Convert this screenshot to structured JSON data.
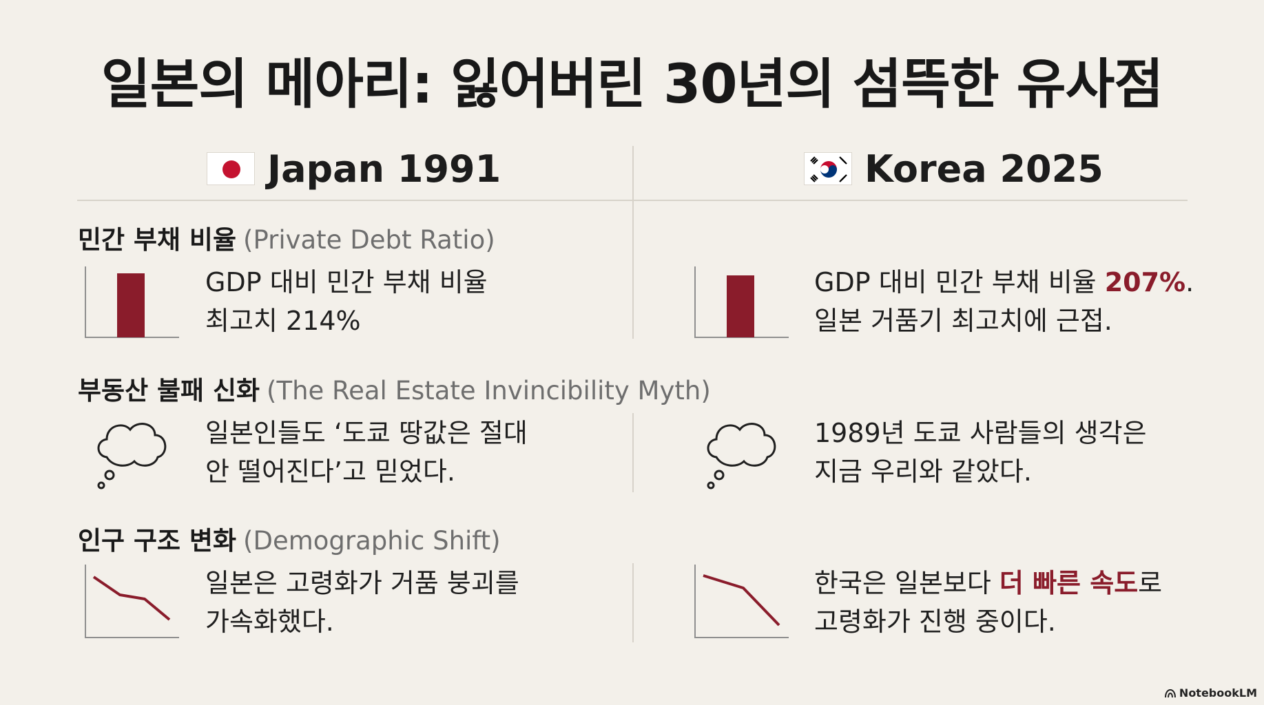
{
  "title": "일본의 메아리: 잃어버린 30년의 섬뜩한 유사점",
  "columns": {
    "japan": {
      "label": "Japan 1991",
      "flag": "japan-flag-icon"
    },
    "korea": {
      "label": "Korea 2025",
      "flag": "korea-flag-icon"
    }
  },
  "sections": [
    {
      "title_ko": "민간 부채 비율",
      "title_en": "(Private Debt Ratio)",
      "icon": "bar-chart-icon",
      "japan": {
        "line1": "GDP 대비 민간 부채 비율",
        "line2": "최고치 214%"
      },
      "korea": {
        "line1_pre": "GDP 대비 민간 부채 비율 ",
        "line1_hl": "207%",
        "line1_post": ".",
        "line2": "일본 거품기 최고치에 근접."
      }
    },
    {
      "title_ko": "부동산 불패 신화",
      "title_en": "(The Real Estate Invincibility Myth)",
      "icon": "thought-cloud-icon",
      "japan": {
        "line1": "일본인들도 ‘도쿄 땅값은 절대",
        "line2": "안 떨어진다’고 믿었다."
      },
      "korea": {
        "line1": "1989년 도쿄 사람들의 생각은",
        "line2": "지금 우리와 같았다."
      }
    },
    {
      "title_ko": "인구 구조 변화",
      "title_en": "(Demographic Shift)",
      "icon": "declining-line-chart-icon",
      "japan": {
        "line1": "일본은 고령화가 거품 붕괴를",
        "line2": "가속화했다."
      },
      "korea": {
        "line1_pre": "한국은 일본보다 ",
        "line1_hl": "더 빠른 속도",
        "line1_post": "로",
        "line2": "고령화가 진행 중이다."
      }
    }
  ],
  "chart_data": [
    {
      "type": "bar",
      "categories": [
        "Japan 1991"
      ],
      "values": [
        214
      ]
    },
    {
      "type": "bar",
      "categories": [
        "Korea 2025"
      ],
      "values": [
        207
      ]
    }
  ],
  "brand": "NotebookLM",
  "colors": {
    "accent": "#8a1c2b",
    "background": "#f3f0ea",
    "muted": "#6e6e6e"
  }
}
